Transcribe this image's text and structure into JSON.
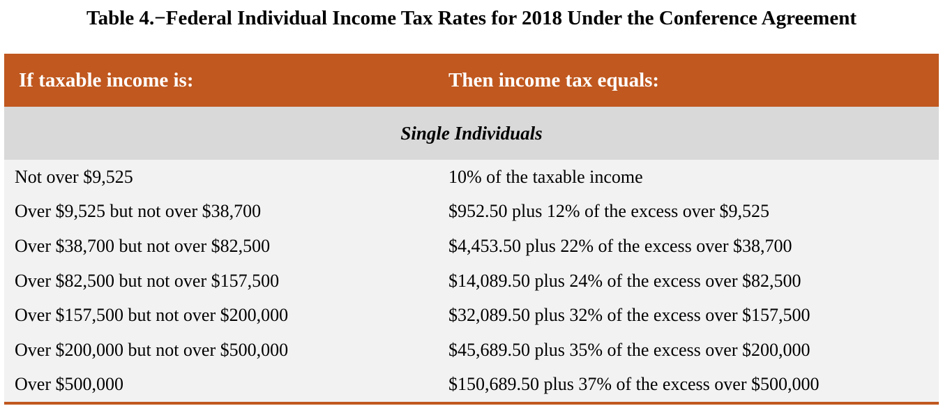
{
  "title": "Table 4.−Federal Individual Income Tax Rates for 2018 Under the Conference Agreement",
  "colors": {
    "header_bg": "#c0581f",
    "subheader_bg": "#d9d9d9",
    "row_bg": "#f2f2f2"
  },
  "table": {
    "headers": [
      "If taxable income is:",
      "Then income tax equals:"
    ],
    "section": "Single Individuals",
    "rows": [
      [
        "Not over $9,525",
        "10% of the taxable income"
      ],
      [
        "Over $9,525 but not over $38,700",
        "$952.50 plus 12% of the excess over $9,525"
      ],
      [
        "Over $38,700 but not over $82,500",
        "$4,453.50 plus 22% of the excess over $38,700"
      ],
      [
        "Over $82,500 but not over $157,500",
        "$14,089.50 plus 24% of the excess over $82,500"
      ],
      [
        "Over $157,500 but not over $200,000",
        "$32,089.50 plus 32% of the excess over $157,500"
      ],
      [
        "Over $200,000 but not over $500,000",
        "$45,689.50 plus 35% of the excess over $200,000"
      ],
      [
        "Over $500,000",
        "$150,689.50 plus 37% of the excess over $500,000"
      ]
    ]
  }
}
